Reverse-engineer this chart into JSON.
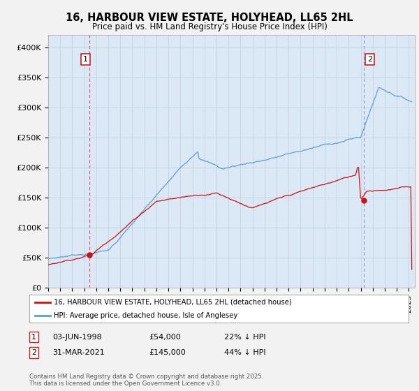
{
  "title": "16, HARBOUR VIEW ESTATE, HOLYHEAD, LL65 2HL",
  "subtitle": "Price paid vs. HM Land Registry's House Price Index (HPI)",
  "ylabel_ticks": [
    "£0",
    "£50K",
    "£100K",
    "£150K",
    "£200K",
    "£250K",
    "£300K",
    "£350K",
    "£400K"
  ],
  "ytick_values": [
    0,
    50000,
    100000,
    150000,
    200000,
    250000,
    300000,
    350000,
    400000
  ],
  "ylim": [
    0,
    420000
  ],
  "xlim_start": 1995.0,
  "xlim_end": 2025.5,
  "hpi_color": "#5a9fd4",
  "price_color": "#cc1111",
  "vline1_color": "#dd4444",
  "vline2_color": "#8888cc",
  "plot_bg_color": "#dce8f5",
  "background_color": "#f2f2f2",
  "marker1_date": 1998.42,
  "marker2_date": 2021.25,
  "marker1_price": 54000,
  "marker2_price": 145000,
  "annotation1_label": "1",
  "annotation2_label": "2",
  "legend_label1": "16, HARBOUR VIEW ESTATE, HOLYHEAD, LL65 2HL (detached house)",
  "legend_label2": "HPI: Average price, detached house, Isle of Anglesey",
  "table_row1": [
    "1",
    "03-JUN-1998",
    "£54,000",
    "22% ↓ HPI"
  ],
  "table_row2": [
    "2",
    "31-MAR-2021",
    "£145,000",
    "44% ↓ HPI"
  ],
  "footer": "Contains HM Land Registry data © Crown copyright and database right 2025.\nThis data is licensed under the Open Government Licence v3.0."
}
